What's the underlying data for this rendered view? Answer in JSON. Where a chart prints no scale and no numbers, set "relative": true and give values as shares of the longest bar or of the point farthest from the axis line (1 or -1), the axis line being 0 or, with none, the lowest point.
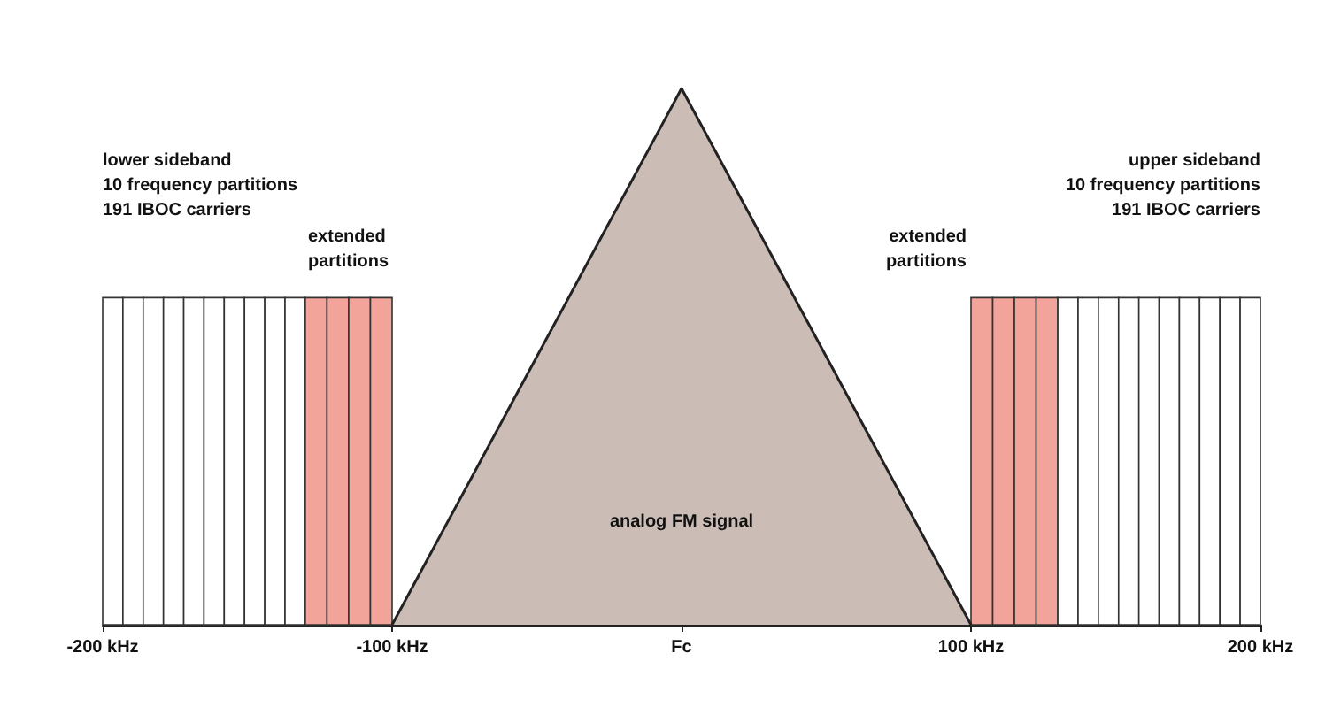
{
  "chart_data": {
    "type": "histogram",
    "relative": true,
    "xlim": [
      -200,
      200
    ],
    "xticks": [
      {
        "value": -200,
        "label": "-200 kHz"
      },
      {
        "value": -100,
        "label": "-100 kHz"
      },
      {
        "value": 0,
        "label": "Fc"
      },
      {
        "value": 100,
        "label": "100 kHz"
      },
      {
        "value": 200,
        "label": "200 kHz"
      }
    ],
    "grid": false,
    "series": [
      {
        "color": "#ffffff",
        "bins": [
          -200,
          -193,
          -186,
          -179,
          -172,
          -165,
          -158,
          -151,
          -144,
          -137,
          -130
        ],
        "values": [
          0.61,
          0.61,
          0.61,
          0.61,
          0.61,
          0.61,
          0.61,
          0.61,
          0.61,
          0.61
        ]
      },
      {
        "color": "#f2a49a",
        "bins": [
          -130,
          -122.5,
          -115,
          -107.5,
          -100
        ],
        "values": [
          0.61,
          0.61,
          0.61,
          0.61
        ]
      },
      {
        "color": "#f2a49a",
        "bins": [
          100,
          107.5,
          115,
          122.5,
          130
        ],
        "values": [
          0.61,
          0.61,
          0.61,
          0.61
        ]
      },
      {
        "color": "#ffffff",
        "bins": [
          130,
          137,
          144,
          151,
          158,
          165,
          172,
          179,
          186,
          193,
          200
        ],
        "values": [
          0.61,
          0.61,
          0.61,
          0.61,
          0.61,
          0.61,
          0.61,
          0.61,
          0.61,
          0.61
        ]
      },
      {
        "type": "area",
        "color": "#cbbdb5",
        "x": [
          -100,
          0,
          100
        ],
        "values": [
          0,
          1,
          0
        ]
      }
    ],
    "annotations": [
      "lower sideband\n10 frequency partitions\n191 IBOC carriers",
      "extended\npartitions",
      "upper sideband\n10 frequency partitions\n191 IBOC carriers",
      "extended\npartitions",
      "analog FM signal"
    ]
  }
}
